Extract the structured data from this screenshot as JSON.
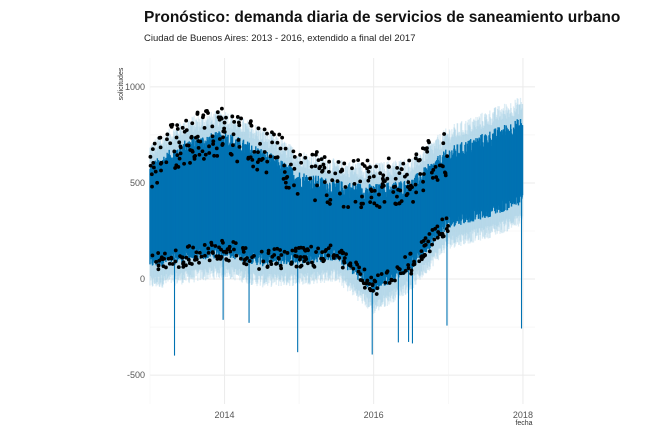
{
  "chart_data": {
    "type": "scatter",
    "title": "Pronóstico: demanda diaria de servicios de saneamiento urbano",
    "subtitle": "Ciudad de Buenos Aires: 2013 - 2016, extendido a final del 2017",
    "xlabel": "fecha",
    "ylabel": "solicitudes",
    "x_ticks": [
      "2014",
      "2016",
      "2018"
    ],
    "y_ticks": [
      1000,
      500,
      0,
      -500
    ],
    "xlim": [
      "2013-01-01",
      "2018-03-01"
    ],
    "ylim": [
      -650,
      1150
    ],
    "grid": true,
    "legend": "none",
    "colors": {
      "observed": "#000000",
      "forecast": "#0072B2",
      "interval": "#9ecae1",
      "grid": "#ebebeb"
    },
    "observed_range": [
      "2013-01-01",
      "2016-12-31"
    ],
    "forecast_range": [
      "2013-01-01",
      "2017-12-31"
    ],
    "series": [
      {
        "values": [
          {
            "x": "2013-01-01",
            "y": 560
          },
          {
            "x": "2013-07-01",
            "y": 690
          },
          {
            "x": "2014-01-01",
            "y": 730
          },
          {
            "x": "2014-07-01",
            "y": 640
          },
          {
            "x": "2015-01-01",
            "y": 520
          },
          {
            "x": "2015-07-01",
            "y": 470
          },
          {
            "x": "2016-01-01",
            "y": 450
          },
          {
            "x": "2016-07-01",
            "y": 480
          },
          {
            "x": "2017-01-01",
            "y": 640
          },
          {
            "x": "2017-07-01",
            "y": 720
          },
          {
            "x": "2017-12-31",
            "y": 800
          }
        ]
      }
    ],
    "weekend_lows": [
      {
        "x": "2013-01-01",
        "y": 90
      },
      {
        "x": "2013-07-01",
        "y": 120
      },
      {
        "x": "2014-01-01",
        "y": 150
      },
      {
        "x": "2014-07-01",
        "y": 100
      },
      {
        "x": "2015-01-01",
        "y": 110
      },
      {
        "x": "2015-07-01",
        "y": 130
      },
      {
        "x": "2016-01-01",
        "y": -40
      },
      {
        "x": "2016-07-01",
        "y": 80
      },
      {
        "x": "2017-01-01",
        "y": 300
      },
      {
        "x": "2017-07-01",
        "y": 350
      },
      {
        "x": "2017-12-31",
        "y": 420
      }
    ]
  }
}
